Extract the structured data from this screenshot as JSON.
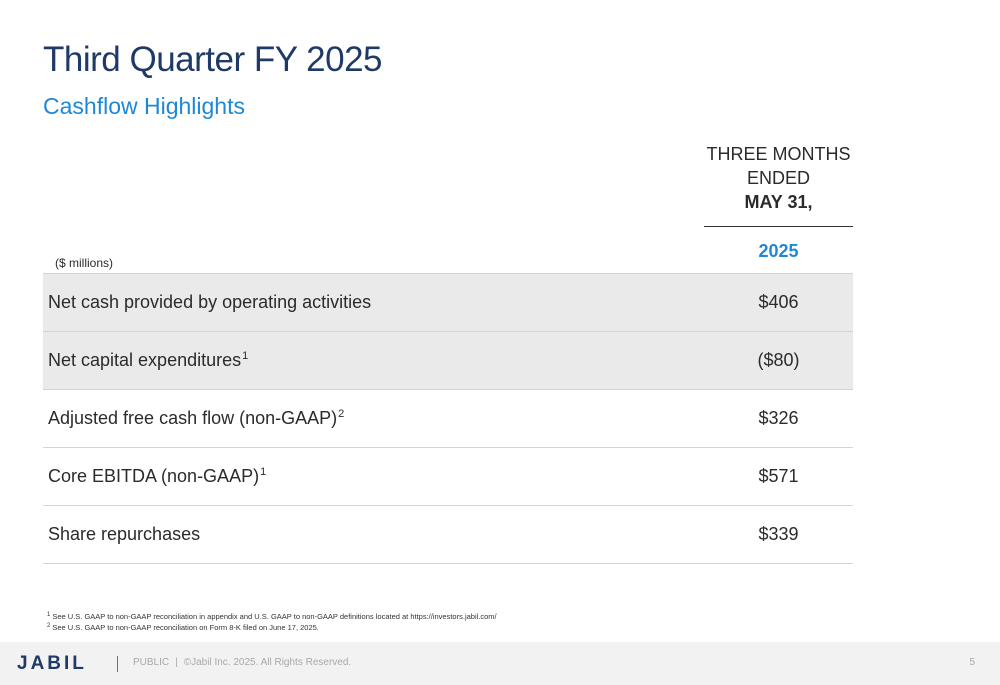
{
  "slide": {
    "title": "Third Quarter FY 2025",
    "subtitle": "Cashflow Highlights"
  },
  "table": {
    "column_header": {
      "line1": "THREE MONTHS",
      "line2": "ENDED",
      "line3": "MAY 31,",
      "year": "2025"
    },
    "units": "($ millions)",
    "rows": [
      {
        "label": "Net cash provided by operating activities",
        "sup": "",
        "value": "$406"
      },
      {
        "label": "Net capital expenditures",
        "sup": "1",
        "value": "($80)"
      },
      {
        "label": "Adjusted free cash flow (non-GAAP)",
        "sup": "2",
        "value": "$326"
      },
      {
        "label": "Core EBITDA (non-GAAP)",
        "sup": "1",
        "value": "$571"
      },
      {
        "label": "Share repurchases",
        "sup": "",
        "value": "$339"
      }
    ]
  },
  "footnotes": [
    {
      "mark": "1",
      "text": "See U.S. GAAP to non-GAAP reconciliation in appendix and U.S. GAAP to non-GAAP definitions located at https://investors.jabil.com/"
    },
    {
      "mark": "2",
      "text": "See U.S. GAAP to non-GAAP reconciliation on Form 8-K filed on June 17, 2025."
    }
  ],
  "footer": {
    "logo_text": "JABIL",
    "classification": "PUBLIC",
    "separator": "|",
    "copyright": "©Jabil Inc. 2025. All Rights Reserved.",
    "page_number": "5"
  },
  "colors": {
    "title": "#1f3a66",
    "accent": "#1e88d6",
    "row_shade": "#eaeaea",
    "footer_bg": "#f2f2f2"
  }
}
